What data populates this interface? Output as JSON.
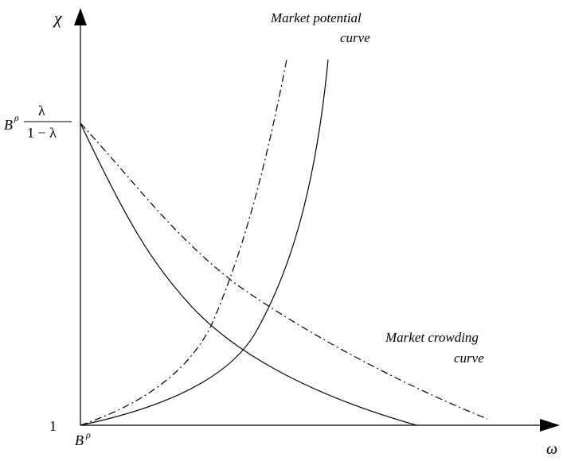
{
  "axes": {
    "y_label": "χ",
    "x_label": "ω",
    "origin_y_label": "1",
    "origin_x_label_base": "B",
    "origin_x_label_exp": "ρ",
    "y_intercept_base": "B",
    "y_intercept_exp": "ρ",
    "y_intercept_num": "λ",
    "y_intercept_den": "1 − λ"
  },
  "annotations": {
    "market_potential_line1": "Market potential",
    "market_potential_line2": "curve",
    "market_crowding_line1": "Market crowding",
    "market_crowding_line2": "curve"
  },
  "colors": {
    "ink": "#000000",
    "background": "#ffffff"
  }
}
